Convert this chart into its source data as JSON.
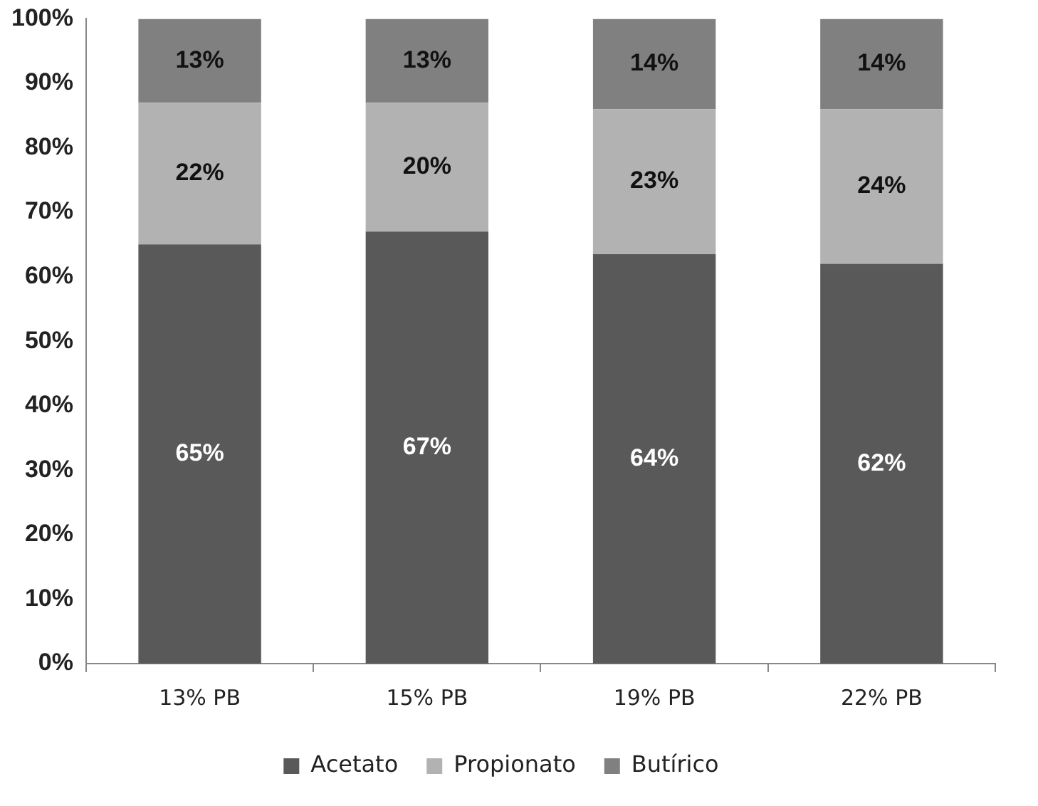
{
  "chart_data": {
    "type": "bar",
    "stacked": true,
    "categories": [
      "13% PB",
      "15% PB",
      "19% PB",
      "22% PB"
    ],
    "series": [
      {
        "name": "Acetato",
        "color": "#595959",
        "values": [
          65,
          67,
          63.5,
          62
        ],
        "value_labels": [
          "65%",
          "67%",
          "64%",
          "62%"
        ]
      },
      {
        "name": "Propionato",
        "color": "#b2b2b2",
        "values": [
          22,
          20,
          22.5,
          24
        ],
        "value_labels": [
          "22%",
          "20%",
          "23%",
          "24%"
        ]
      },
      {
        "name": "Butírico",
        "color": "#808080",
        "values": [
          13,
          13,
          14,
          14
        ],
        "value_labels": [
          "13%",
          "13%",
          "14%",
          "14%"
        ]
      }
    ],
    "ylim": [
      0,
      100
    ],
    "yticks": [
      {
        "value": 0,
        "label": "0%"
      },
      {
        "value": 10,
        "label": "10%"
      },
      {
        "value": 20,
        "label": "20%"
      },
      {
        "value": 30,
        "label": "30%"
      },
      {
        "value": 40,
        "label": "40%"
      },
      {
        "value": 50,
        "label": "50%"
      },
      {
        "value": 60,
        "label": "60%"
      },
      {
        "value": 70,
        "label": "70%"
      },
      {
        "value": 80,
        "label": "80%"
      },
      {
        "value": 90,
        "label": "90%"
      },
      {
        "value": 100,
        "label": "100%"
      }
    ],
    "grid": false,
    "legend": "bottom"
  }
}
